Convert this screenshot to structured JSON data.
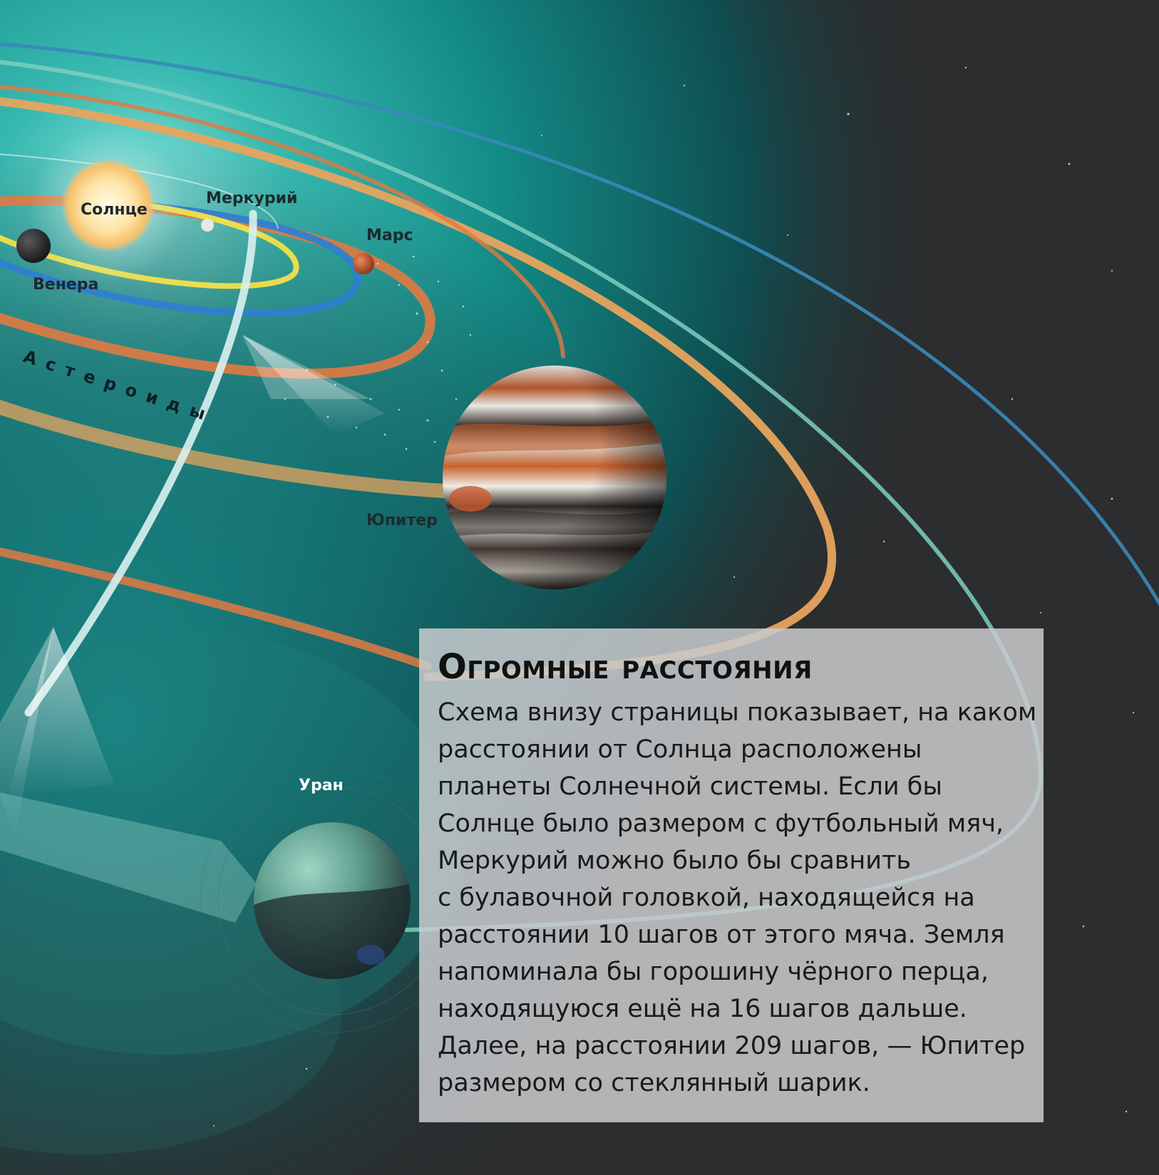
{
  "labels": {
    "sun": "Солнце",
    "mercury": "Меркурий",
    "venus": "Венера",
    "mars": "Марс",
    "asteroids": "Астероиды",
    "jupiter": "Юпитер",
    "uranus": "Уран"
  },
  "info": {
    "title": "Огромные расстояния",
    "lines": [
      "Схема внизу страницы показывает, на каком",
      "расстоянии от Солнца расположены",
      "планеты Солнечной системы. Если бы",
      "Солнце было размером с футбольный мяч,",
      "Меркурий можно было бы сравнить",
      "с булавочной головкой, находящейся на",
      "расстоянии 10 шагов от этого мяча. Земля",
      "напоминала бы горошину чёрного перца,",
      "находящуюся ещё на 16 шагов дальше.",
      "Далее, на расстоянии 209 шагов, — Юпитер",
      "размером со стеклянный шарик."
    ]
  },
  "colors": {
    "space": "#2b2d2e",
    "nebula": "#1aa39a",
    "orbit_yellow": "#f2e04a",
    "orbit_blue": "#2f7fd0",
    "orbit_orange": "#e07a43",
    "orbit_tan": "#e7a45e",
    "orbit_teal": "#7ccfc0"
  }
}
